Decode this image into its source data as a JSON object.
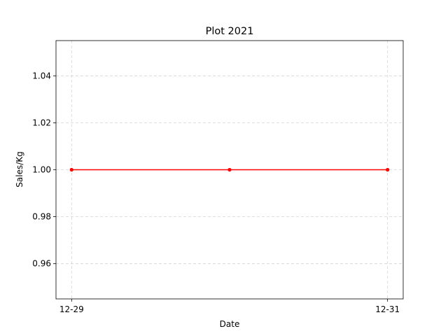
{
  "chart_data": {
    "type": "line",
    "title": "Plot 2021",
    "xlabel": "Date",
    "ylabel": "Sales/Kg",
    "x": [
      "12-29",
      "12-30",
      "12-31"
    ],
    "x_tick_labels": [
      "12-29",
      "12-31"
    ],
    "series": [
      {
        "values": [
          1.0,
          1.0,
          1.0
        ],
        "color": "#ff0000",
        "marker": "dot"
      }
    ],
    "ylim": [
      0.945,
      1.055
    ],
    "yticks": [
      0.96,
      0.98,
      1.0,
      1.02,
      1.04
    ],
    "ytick_labels": [
      "0.96",
      "0.98",
      "1.00",
      "1.02",
      "1.04"
    ],
    "grid": true
  }
}
